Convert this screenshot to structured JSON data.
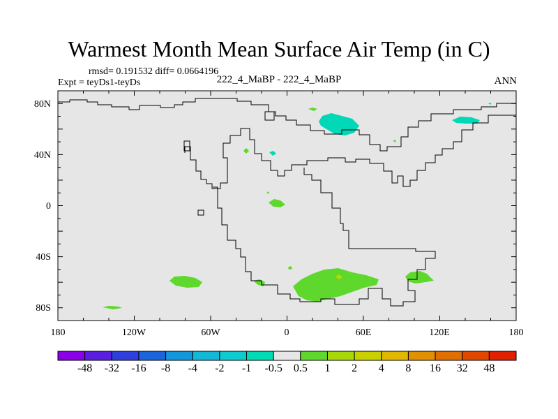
{
  "title": "Warmest Month Mean Surface Air Temp (in C)",
  "stats": "rmsd= 0.191532 diff= 0.0664196",
  "experiment": "Expt = teyDs1-teyDs",
  "center_label": "222_4_MaBP - 222_4_MaBP",
  "season": "ANN",
  "map": {
    "projection": "cylindrical equidistant",
    "lon_range": [
      -180,
      180
    ],
    "lat_range": [
      -90,
      90
    ],
    "background_color": "#e6e6e6",
    "x_tick_labels": [
      "180",
      "120W",
      "60W",
      "0",
      "60E",
      "120E",
      "180"
    ],
    "y_tick_labels": [
      "80N",
      "40N",
      "0",
      "40S",
      "80S"
    ],
    "difference_patches": [
      {
        "name": "arctic-cyan-patch",
        "level": "-1 to -0.5",
        "color": "#00d8b8"
      },
      {
        "name": "east-arctic-cyan-patch",
        "level": "-1 to -0.5",
        "color": "#00d8b8"
      },
      {
        "name": "south-pacific-green-patch",
        "level": "0.5 to 1",
        "color": "#5fd82e"
      },
      {
        "name": "south-pacific-small-green-patch",
        "level": "0.5 to 1",
        "color": "#5fd82e"
      },
      {
        "name": "antarctic-green-patch",
        "level": "0.5 to 1",
        "color": "#5fd82e"
      },
      {
        "name": "east-antarctic-green-patch",
        "level": "0.5 to 1",
        "color": "#5fd82e"
      },
      {
        "name": "equatorial-green-patch",
        "level": "0.5 to 1",
        "color": "#5fd82e"
      },
      {
        "name": "antarctic-yellow-spot",
        "level": "1 to 2",
        "color": "#b8d800"
      }
    ]
  },
  "colorbar": {
    "colors": [
      "#8a00e6",
      "#5a1ee0",
      "#2f3fde",
      "#1c64dc",
      "#1496da",
      "#12b8d6",
      "#0ecbd0",
      "#00dbb4",
      "#e6e6e6",
      "#5fd82e",
      "#a8d80a",
      "#c8d000",
      "#e0b800",
      "#e09000",
      "#e06e00",
      "#e04800",
      "#e02000"
    ],
    "labels": [
      "-48",
      "-32",
      "-16",
      "-8",
      "-4",
      "-2",
      "-1",
      "-0.5",
      "0.5",
      "1",
      "2",
      "4",
      "8",
      "16",
      "32",
      "48"
    ]
  }
}
